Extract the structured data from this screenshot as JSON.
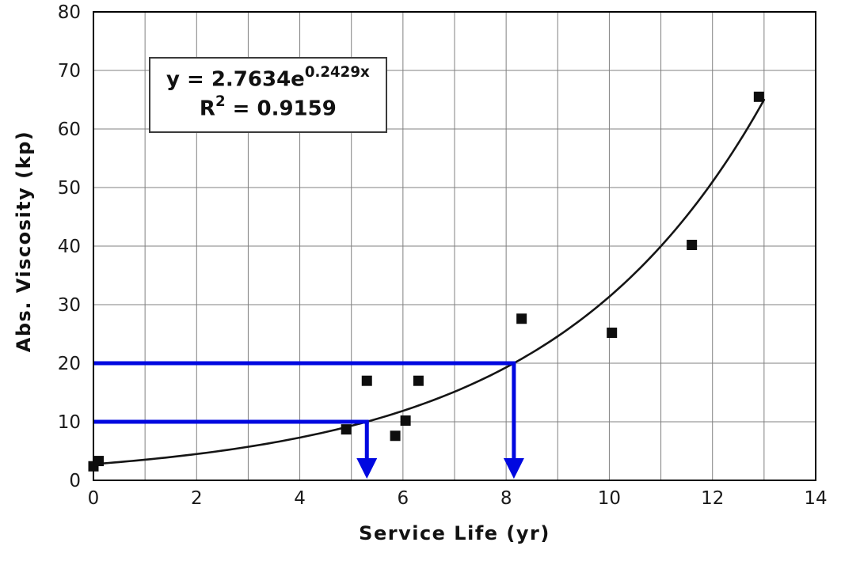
{
  "chart_data": {
    "type": "scatter",
    "title": "",
    "xlabel": "Service Life (yr)",
    "ylabel": "Abs. Viscosity (kp)",
    "xlim": [
      0,
      14
    ],
    "ylim": [
      0,
      80
    ],
    "x_major_ticks": [
      0,
      2,
      4,
      6,
      8,
      10,
      12,
      14
    ],
    "y_major_ticks": [
      0,
      10,
      20,
      30,
      40,
      50,
      60,
      70,
      80
    ],
    "x_grid_step": 1,
    "y_grid_step": 10,
    "grid": true,
    "legend": "none",
    "points": [
      [
        0.0,
        2.4
      ],
      [
        0.1,
        3.3
      ],
      [
        4.9,
        8.7
      ],
      [
        5.3,
        17.0
      ],
      [
        5.85,
        7.6
      ],
      [
        6.05,
        10.2
      ],
      [
        6.3,
        17.0
      ],
      [
        8.3,
        27.6
      ],
      [
        10.05,
        25.2
      ],
      [
        11.6,
        40.2
      ],
      [
        12.9,
        65.5
      ]
    ],
    "trendline": {
      "type": "exponential",
      "a": 2.7634,
      "b": 0.2429,
      "x_start": 0,
      "x_end": 13.05
    },
    "equation": {
      "line1_base": "y = 2.7634e",
      "line1_sup": "0.2429x",
      "line2_base": "R",
      "line2_sup": "2",
      "line2_rest": " = 0.9159"
    },
    "annotations": [
      {
        "type": "guide",
        "y": 20,
        "x": 8.15
      },
      {
        "type": "guide",
        "y": 10,
        "x": 5.3
      }
    ],
    "colors": {
      "point": "#0d0d0d",
      "trend": "#151515",
      "grid": "#808080",
      "axis": "#000000",
      "guide": "#0008e0",
      "text": "#1a1a1a"
    }
  }
}
